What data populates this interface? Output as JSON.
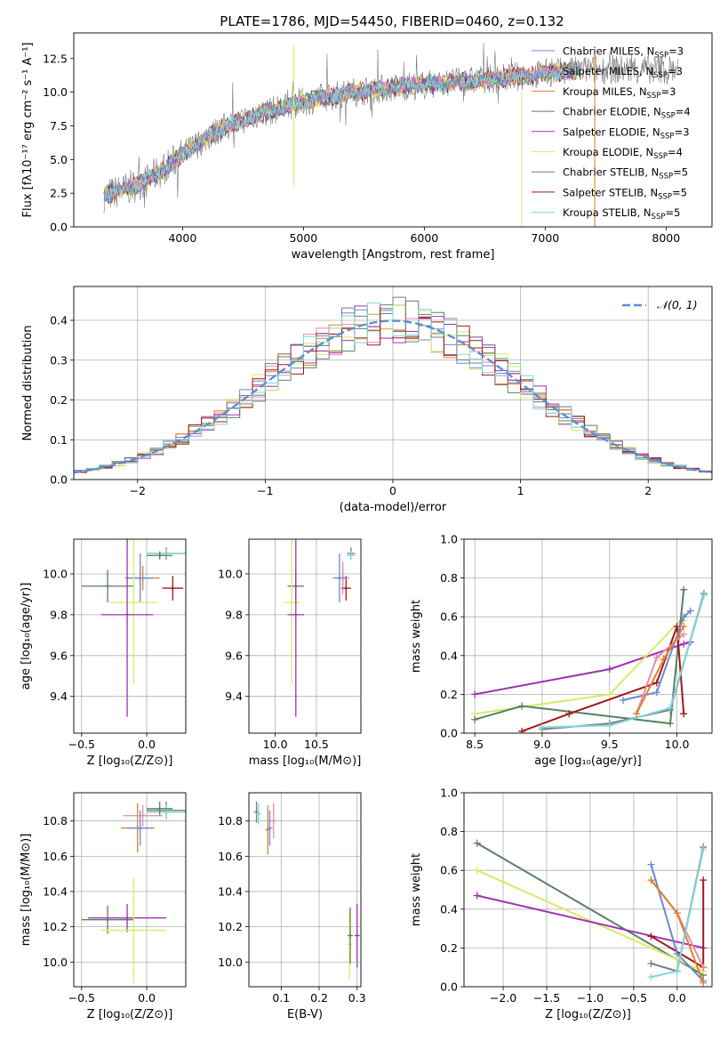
{
  "figure": {
    "title": "PLATE=1786, MJD=54450, FIBERID=0460, z=0.132"
  },
  "colors": {
    "chabrier_miles": "#6b87d4",
    "salpeter_miles": "#e88ba8",
    "kroupa_miles": "#e0802a",
    "chabrier_elodie": "#5a8060",
    "salpeter_elodie": "#9c34b0",
    "kroupa_elodie": "#d8ea66",
    "chabrier_stelib": "#7a7a7a",
    "salpeter_stelib": "#a51518",
    "kroupa_stelib": "#7dd6d9",
    "normal_curve": "#5b8fd4",
    "grid": "#b0b0b0"
  },
  "chart_data": [
    {
      "id": "spectrum",
      "type": "line",
      "xlabel": "wavelength [Angstrom, rest frame]",
      "ylabel": "Flux [fλ10⁻¹⁷ erg cm⁻² s⁻¹ A⁻¹]",
      "xlim": [
        3100,
        8380
      ],
      "ylim": [
        0,
        14.4
      ],
      "xticks": [
        "4000",
        "5000",
        "6000",
        "7000",
        "8000"
      ],
      "yticks": [
        "0.0",
        "2.5",
        "5.0",
        "7.5",
        "10.0",
        "12.5"
      ],
      "grid": false,
      "legend_position": "upper right",
      "legend": [
        {
          "name": "Chabrier MILES, N",
          "sub": "SSP",
          "n": "=3"
        },
        {
          "name": "Salpeter MILES, N",
          "sub": "SSP",
          "n": "=3"
        },
        {
          "name": "Kroupa MILES, N",
          "sub": "SSP",
          "n": "=3"
        },
        {
          "name": "Chabrier ELODIE, N",
          "sub": "SSP",
          "n": "=4"
        },
        {
          "name": "Salpeter ELODIE, N",
          "sub": "SSP",
          "n": "=3"
        },
        {
          "name": "Kroupa ELODIE, N",
          "sub": "SSP",
          "n": "=4"
        },
        {
          "name": "Chabrier STELIB, N",
          "sub": "SSP",
          "n": "=5"
        },
        {
          "name": "Salpeter STELIB, N",
          "sub": "SSP",
          "n": "=5"
        },
        {
          "name": "Kroupa STELIB, N",
          "sub": "SSP",
          "n": "=5"
        }
      ],
      "continuum": {
        "x": [
          3350,
          3500,
          3700,
          3900,
          4100,
          4300,
          4600,
          5000,
          5400,
          5800,
          6200,
          6600,
          7000,
          7400
        ],
        "y": [
          2.3,
          2.7,
          3.4,
          4.7,
          6.0,
          7.2,
          8.3,
          9.3,
          10.0,
          10.4,
          10.7,
          11.0,
          11.4,
          11.7
        ]
      },
      "spikes": [
        {
          "x": 4920,
          "y": [
            3.0,
            13.5
          ]
        },
        {
          "x": 6805,
          "y": [
            0,
            10.0
          ]
        },
        {
          "x": 7410,
          "y": [
            0,
            12.8
          ]
        }
      ]
    },
    {
      "id": "residuals",
      "type": "bar",
      "xlabel": "(data-model)/error",
      "ylabel": "Normed distribution",
      "xlim": [
        -2.5,
        2.5
      ],
      "ylim": [
        0,
        0.485
      ],
      "xticks": [
        "−2",
        "−1",
        "0",
        "1",
        "2"
      ],
      "yticks": [
        "0.0",
        "0.1",
        "0.2",
        "0.3",
        "0.4"
      ],
      "grid": true,
      "legend_position": "upper right",
      "legend_label": "𝒩(0, 1)"
    },
    {
      "id": "age-vs-Z",
      "type": "scatter",
      "xlabel": "Z [log₁₀(Z/Z⊙)]",
      "ylabel": "age  [log₁₀(age/yr)]",
      "xlim": [
        -0.56,
        0.3
      ],
      "ylim": [
        9.22,
        10.17
      ],
      "xticks": [
        "−0.5",
        "0.0"
      ],
      "yticks": [
        "9.4",
        "9.6",
        "9.8",
        "10.0"
      ],
      "grid": true,
      "points": [
        {
          "x": 0.15,
          "y": 10.1,
          "xerr": 0.15,
          "yerr": 0.03,
          "c": "chabrier_stelib"
        },
        {
          "x": 0.15,
          "y": 10.1,
          "xerr": 0.15,
          "yerr": 0.02,
          "c": "kroupa_stelib"
        },
        {
          "x": 0.1,
          "y": 10.09,
          "xerr": 0.1,
          "yerr": 0.02,
          "c": "chabrier_elodie"
        },
        {
          "x": 0.2,
          "y": 9.93,
          "xerr": 0.08,
          "yerr": 0.06,
          "c": "salpeter_stelib"
        },
        {
          "x": -0.03,
          "y": 9.98,
          "xerr": 0.13,
          "yerr": 0.06,
          "c": "kroupa_miles"
        },
        {
          "x": -0.05,
          "y": 9.98,
          "xerr": 0.12,
          "yerr": 0.08,
          "c": "salpeter_miles"
        },
        {
          "x": -0.05,
          "y": 9.98,
          "xerr": 0.1,
          "yerr": 0.12,
          "c": "chabrier_miles"
        },
        {
          "x": -0.3,
          "y": 9.94,
          "xerr": 0.2,
          "yerr": 0.08,
          "c": "chabrier_elodie"
        },
        {
          "x": -0.1,
          "y": 9.86,
          "xerr": 0.18,
          "yerr": 0.4,
          "c": "kroupa_elodie"
        },
        {
          "x": -0.15,
          "y": 9.8,
          "xerr": 0.2,
          "yerr": 0.5,
          "c": "salpeter_elodie"
        }
      ]
    },
    {
      "id": "age-vs-mass",
      "type": "scatter",
      "xlabel": "mass [log₁₀(M/M⊙)]",
      "ylabel": "",
      "xlim": [
        9.68,
        11.04
      ],
      "ylim": [
        9.22,
        10.17
      ],
      "xticks": [
        "10.0",
        "10.5"
      ],
      "yticks": [
        "9.4",
        "9.6",
        "9.8",
        "10.0"
      ],
      "grid": true,
      "points": [
        {
          "x": 10.92,
          "y": 10.1,
          "xerr": 0.05,
          "yerr": 0.03,
          "c": "chabrier_stelib"
        },
        {
          "x": 10.92,
          "y": 10.09,
          "xerr": 0.05,
          "yerr": 0.02,
          "c": "kroupa_stelib"
        },
        {
          "x": 10.86,
          "y": 9.93,
          "xerr": 0.06,
          "yerr": 0.06,
          "c": "salpeter_stelib"
        },
        {
          "x": 10.82,
          "y": 9.98,
          "xerr": 0.05,
          "yerr": 0.06,
          "c": "kroupa_miles"
        },
        {
          "x": 10.82,
          "y": 9.98,
          "xerr": 0.08,
          "yerr": 0.08,
          "c": "salpeter_miles"
        },
        {
          "x": 10.78,
          "y": 9.98,
          "xerr": 0.08,
          "yerr": 0.12,
          "c": "chabrier_miles"
        },
        {
          "x": 10.25,
          "y": 9.94,
          "xerr": 0.1,
          "yerr": 0.08,
          "c": "chabrier_elodie"
        },
        {
          "x": 10.2,
          "y": 9.86,
          "xerr": 0.1,
          "yerr": 0.4,
          "c": "kroupa_elodie"
        },
        {
          "x": 10.25,
          "y": 9.8,
          "xerr": 0.1,
          "yerr": 0.5,
          "c": "salpeter_elodie"
        }
      ]
    },
    {
      "id": "weight-vs-age",
      "type": "line",
      "xlabel": "age  [log₁₀(age/yr)]",
      "ylabel": "mass weight",
      "xlim": [
        8.42,
        10.26
      ],
      "ylim": [
        0,
        1
      ],
      "xticks": [
        "8.5",
        "9.0",
        "9.5",
        "10.0"
      ],
      "yticks": [
        "0.0",
        "0.2",
        "0.4",
        "0.6",
        "0.8",
        "1.0"
      ],
      "grid": true,
      "series": [
        {
          "c": "salpeter_elodie",
          "x": [
            8.5,
            9.5,
            10.05,
            10.1
          ],
          "y": [
            0.2,
            0.33,
            0.46,
            0.47
          ]
        },
        {
          "c": "kroupa_elodie",
          "x": [
            8.5,
            9.5,
            10.05,
            10.05
          ],
          "y": [
            0.1,
            0.2,
            0.6,
            0.58
          ]
        },
        {
          "c": "chabrier_elodie",
          "x": [
            8.5,
            8.85,
            9.95,
            10.05
          ],
          "y": [
            0.07,
            0.14,
            0.05,
            0.74
          ]
        },
        {
          "c": "salpeter_stelib",
          "x": [
            8.85,
            9.2,
            9.85,
            10.0,
            10.05
          ],
          "y": [
            0.01,
            0.1,
            0.26,
            0.55,
            0.1
          ]
        },
        {
          "c": "chabrier_miles",
          "x": [
            9.6,
            9.85,
            10.05,
            10.1
          ],
          "y": [
            0.17,
            0.21,
            0.6,
            0.63
          ]
        },
        {
          "c": "salpeter_miles",
          "x": [
            9.7,
            9.85,
            10.05
          ],
          "y": [
            0.1,
            0.39,
            0.51
          ]
        },
        {
          "c": "kroupa_miles",
          "x": [
            9.7,
            9.9,
            10.05
          ],
          "y": [
            0.1,
            0.38,
            0.55
          ]
        },
        {
          "c": "chabrier_stelib",
          "x": [
            9.0,
            9.5,
            9.95,
            10.2
          ],
          "y": [
            0.02,
            0.05,
            0.12,
            0.72
          ]
        },
        {
          "c": "kroupa_stelib",
          "x": [
            9.0,
            9.5,
            9.95,
            10.2
          ],
          "y": [
            0.03,
            0.04,
            0.13,
            0.71
          ]
        }
      ]
    },
    {
      "id": "mass-vs-Z",
      "type": "scatter",
      "xlabel": "Z [log₁₀(Z/Z⊙)]",
      "ylabel": "mass [log₁₀(M/M⊙)]",
      "xlim": [
        -0.56,
        0.3
      ],
      "ylim": [
        9.86,
        10.96
      ],
      "xticks": [
        "−0.5",
        "0.0"
      ],
      "yticks": [
        "10.0",
        "10.2",
        "10.4",
        "10.6",
        "10.8"
      ],
      "grid": true,
      "points": [
        {
          "x": 0.15,
          "y": 10.86,
          "xerr": 0.15,
          "yerr": 0.05,
          "c": "chabrier_stelib"
        },
        {
          "x": 0.15,
          "y": 10.85,
          "xerr": 0.15,
          "yerr": 0.04,
          "c": "kroupa_stelib"
        },
        {
          "x": 0.1,
          "y": 10.87,
          "xerr": 0.1,
          "yerr": 0.04,
          "c": "chabrier_elodie"
        },
        {
          "x": -0.03,
          "y": 10.83,
          "xerr": 0.15,
          "yerr": 0.06,
          "c": "salpeter_miles"
        },
        {
          "x": -0.07,
          "y": 10.76,
          "xerr": 0.13,
          "yerr": 0.14,
          "c": "kroupa_miles"
        },
        {
          "x": -0.05,
          "y": 10.76,
          "xerr": 0.1,
          "yerr": 0.1,
          "c": "chabrier_miles"
        },
        {
          "x": -0.3,
          "y": 10.24,
          "xerr": 0.2,
          "yerr": 0.08,
          "c": "chabrier_elodie"
        },
        {
          "x": -0.15,
          "y": 10.25,
          "xerr": 0.3,
          "yerr": 0.08,
          "c": "salpeter_elodie"
        },
        {
          "x": -0.1,
          "y": 10.18,
          "xerr": 0.25,
          "yerr": 0.3,
          "c": "kroupa_elodie"
        }
      ]
    },
    {
      "id": "mass-vs-EBV",
      "type": "scatter",
      "xlabel": "E(B-V)",
      "ylabel": "",
      "xlim": [
        0.015,
        0.31
      ],
      "ylim": [
        9.86,
        10.96
      ],
      "xticks": [
        "0.1",
        "0.2",
        "0.3"
      ],
      "yticks": [
        "10.0",
        "10.2",
        "10.4",
        "10.6",
        "10.8"
      ],
      "grid": true,
      "points": [
        {
          "x": 0.035,
          "y": 10.85,
          "xerr": 0,
          "yerr": 0.06,
          "c": "chabrier_stelib"
        },
        {
          "x": 0.04,
          "y": 10.84,
          "xerr": 0,
          "yerr": 0.06,
          "c": "kroupa_stelib"
        },
        {
          "x": 0.065,
          "y": 10.75,
          "xerr": 0,
          "yerr": 0.14,
          "c": "kroupa_miles"
        },
        {
          "x": 0.07,
          "y": 10.76,
          "xerr": 0,
          "yerr": 0.1,
          "c": "chabrier_miles"
        },
        {
          "x": 0.08,
          "y": 10.8,
          "xerr": 0,
          "yerr": 0.1,
          "c": "salpeter_miles"
        },
        {
          "x": 0.28,
          "y": 10.1,
          "xerr": 0,
          "yerr": 0.2,
          "c": "kroupa_elodie"
        },
        {
          "x": 0.282,
          "y": 10.15,
          "xerr": 0,
          "yerr": 0.16,
          "c": "chabrier_elodie"
        },
        {
          "x": 0.3,
          "y": 10.15,
          "xerr": 0,
          "yerr": 0.18,
          "c": "salpeter_elodie"
        }
      ]
    },
    {
      "id": "weight-vs-Z",
      "type": "line",
      "xlabel": "Z [log₁₀(Z/Z⊙)]",
      "ylabel": "mass weight",
      "xlim": [
        -2.45,
        0.4
      ],
      "ylim": [
        0,
        1
      ],
      "xticks": [
        "−2.0",
        "−1.5",
        "−1.0",
        "−0.5",
        "0.0"
      ],
      "yticks": [
        "0.0",
        "0.2",
        "0.4",
        "0.6",
        "0.8",
        "1.0"
      ],
      "grid": true,
      "series": [
        {
          "c": "chabrier_elodie",
          "x": [
            -2.3,
            0.3
          ],
          "y": [
            0.74,
            0.06
          ]
        },
        {
          "c": "kroupa_elodie",
          "x": [
            -2.3,
            0.3
          ],
          "y": [
            0.6,
            0.08
          ]
        },
        {
          "c": "salpeter_elodie",
          "x": [
            -2.3,
            0.3
          ],
          "y": [
            0.47,
            0.2
          ]
        },
        {
          "c": "salpeter_stelib",
          "x": [
            -0.3,
            0.3,
            0.3
          ],
          "y": [
            0.26,
            0.1,
            0.55
          ]
        },
        {
          "c": "chabrier_miles",
          "x": [
            -0.3,
            0.0,
            0.3
          ],
          "y": [
            0.63,
            0.17,
            0.03
          ]
        },
        {
          "c": "salpeter_miles",
          "x": [
            -0.3,
            0.0,
            0.3
          ],
          "y": [
            0.55,
            0.38,
            0.1
          ]
        },
        {
          "c": "kroupa_miles",
          "x": [
            -0.3,
            0.0,
            0.3
          ],
          "y": [
            0.55,
            0.38,
            0.02
          ]
        },
        {
          "c": "chabrier_stelib",
          "x": [
            -0.3,
            0.0,
            0.3
          ],
          "y": [
            0.12,
            0.08,
            0.72
          ]
        },
        {
          "c": "kroupa_stelib",
          "x": [
            -0.3,
            0.0,
            0.3
          ],
          "y": [
            0.05,
            0.08,
            0.71
          ]
        }
      ]
    }
  ]
}
